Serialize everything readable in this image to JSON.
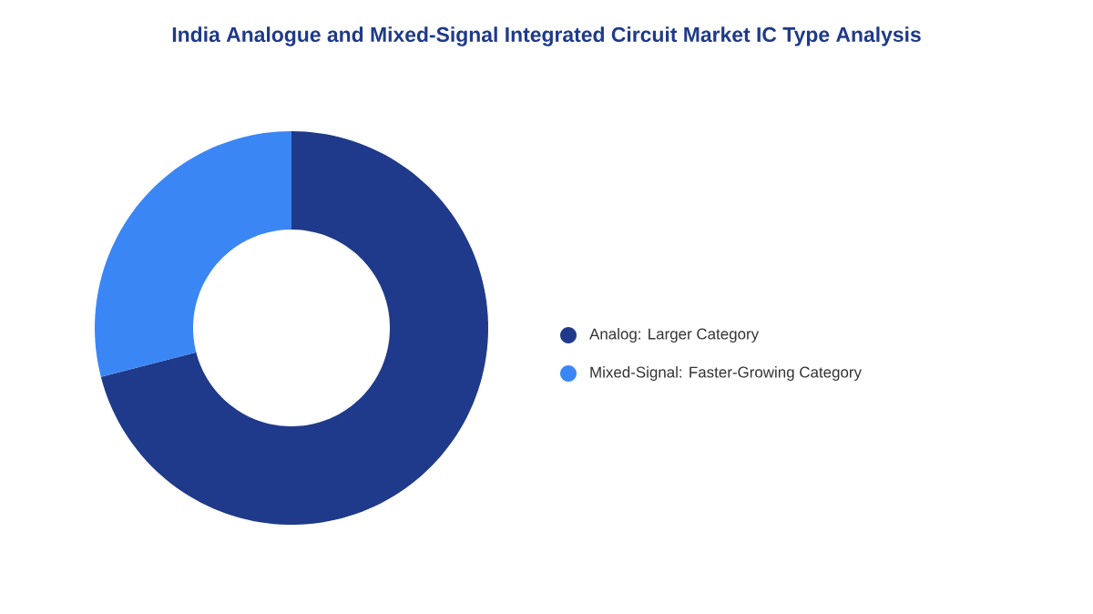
{
  "chart_data": {
    "type": "donut",
    "title": "India Analogue and Mixed-Signal Integrated Circuit Market IC Type Analysis",
    "categories": [
      "Analog: Larger Category",
      "Mixed-Signal: Faster-Growing Category"
    ],
    "values": [
      71,
      29
    ],
    "colors": [
      "#1f3a8a",
      "#3b86f5"
    ],
    "legend": "right"
  }
}
